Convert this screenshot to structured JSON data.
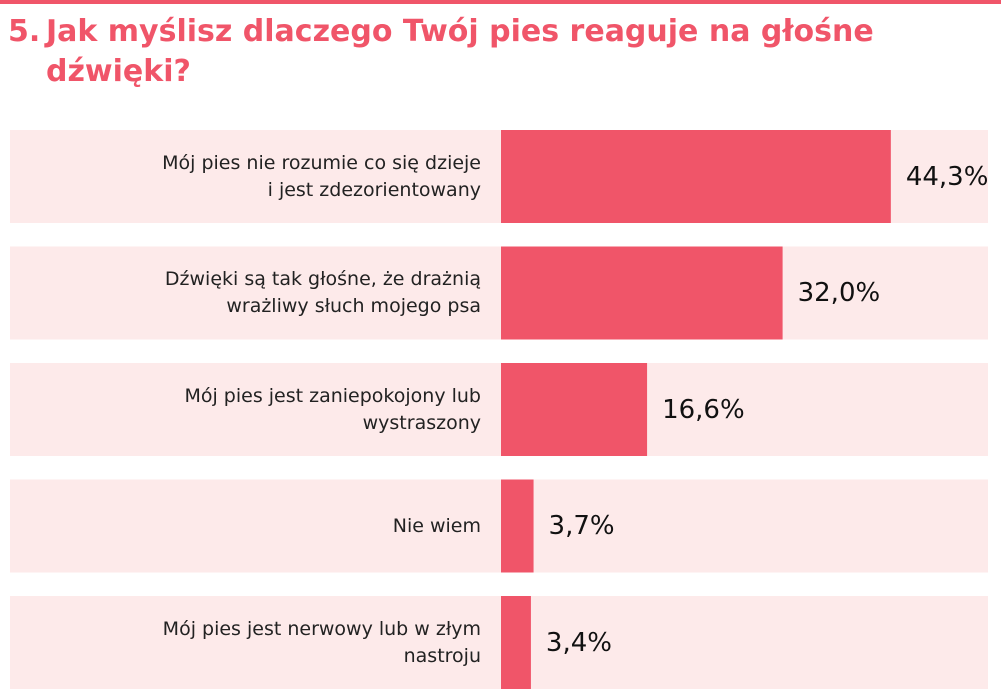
{
  "title": {
    "number": "5.",
    "line1": "Jak myślisz dlaczego Twój pies reaguje na głośne",
    "line2": "dźwięki?"
  },
  "colors": {
    "accent": "#f05569",
    "row_background": "#fdeaea",
    "text": "#222222"
  },
  "chart_data": {
    "type": "bar",
    "orientation": "horizontal",
    "title": "5. Jak myślisz dlaczego Twój pies reaguje na głośne dźwięki?",
    "xlabel": "",
    "ylabel": "",
    "xlim": [
      0,
      100
    ],
    "grid": false,
    "categories": [
      [
        "Mój pies nie rozumie co się dzieje",
        "i jest zdezorientowany"
      ],
      [
        "Dźwięki są tak głośne, że drażnią",
        "wrażliwy słuch mojego psa"
      ],
      [
        "Mój pies jest zaniepokojony lub",
        "wystraszony"
      ],
      [
        "Nie wiem"
      ],
      [
        "Mój pies jest nerwowy lub w złym",
        "nastroju"
      ]
    ],
    "values": [
      44.3,
      32.0,
      16.6,
      3.7,
      3.4
    ],
    "value_labels": [
      "44,3%",
      "32,0%",
      "16,6%",
      "3,7%",
      "3,4%"
    ]
  }
}
